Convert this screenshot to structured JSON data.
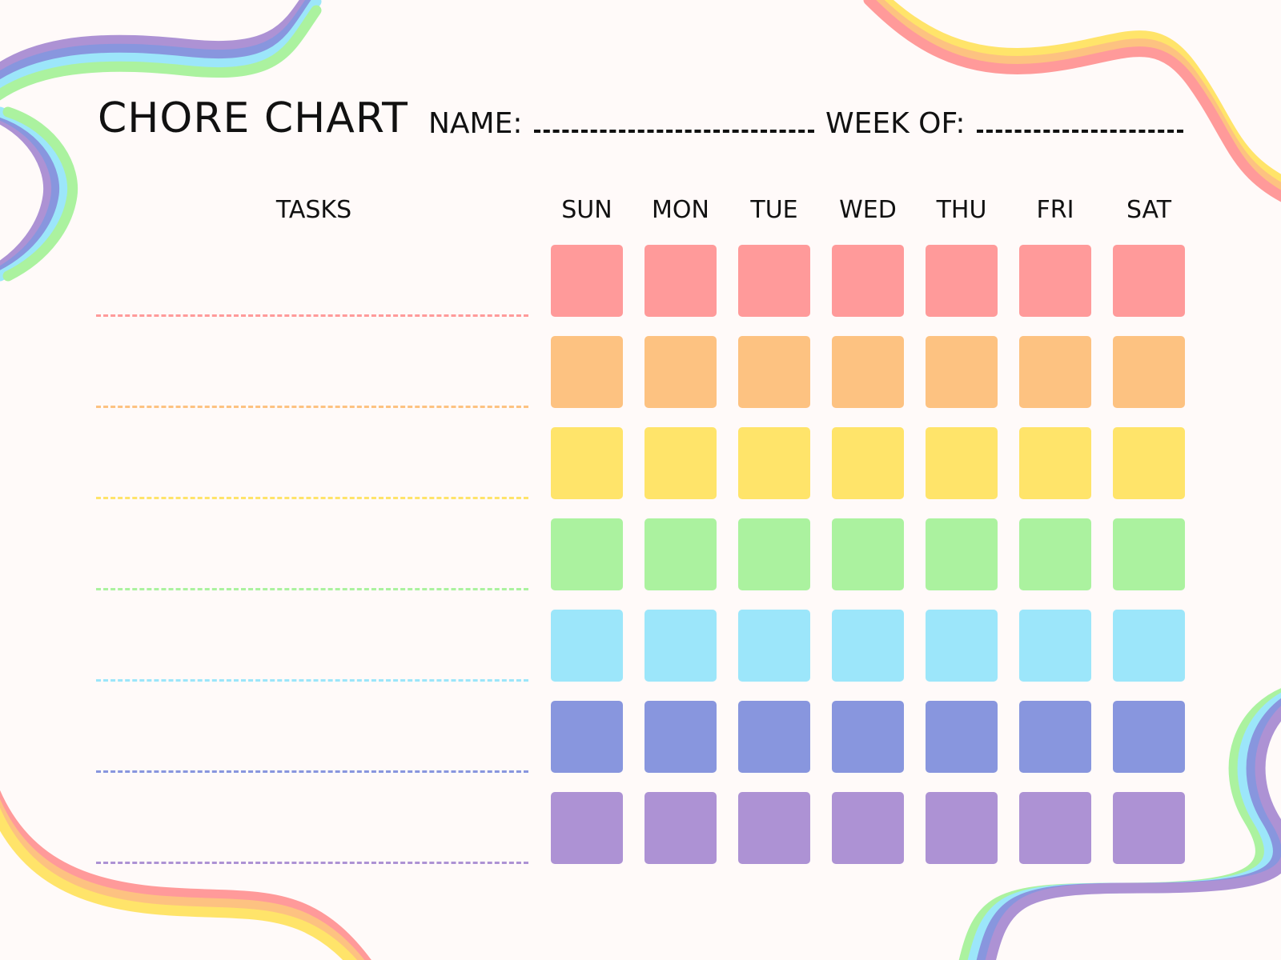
{
  "header": {
    "title": "CHORE CHART",
    "name_label": "NAME:",
    "week_label": "WEEK OF:"
  },
  "tasks_label": "TASKS",
  "days": [
    "SUN",
    "MON",
    "TUE",
    "WED",
    "THU",
    "FRI",
    "SAT"
  ],
  "row_colors": [
    "#ff9a9a",
    "#fdc281",
    "#ffe46a",
    "#abf29f",
    "#9ce6fa",
    "#8896de",
    "#ad92d4"
  ],
  "decoration_colors": {
    "cool": [
      "#ad92d4",
      "#8896de",
      "#9ce6fa",
      "#abf29f"
    ],
    "warm": [
      "#ffe46a",
      "#fdc281",
      "#ff9a9a"
    ]
  }
}
